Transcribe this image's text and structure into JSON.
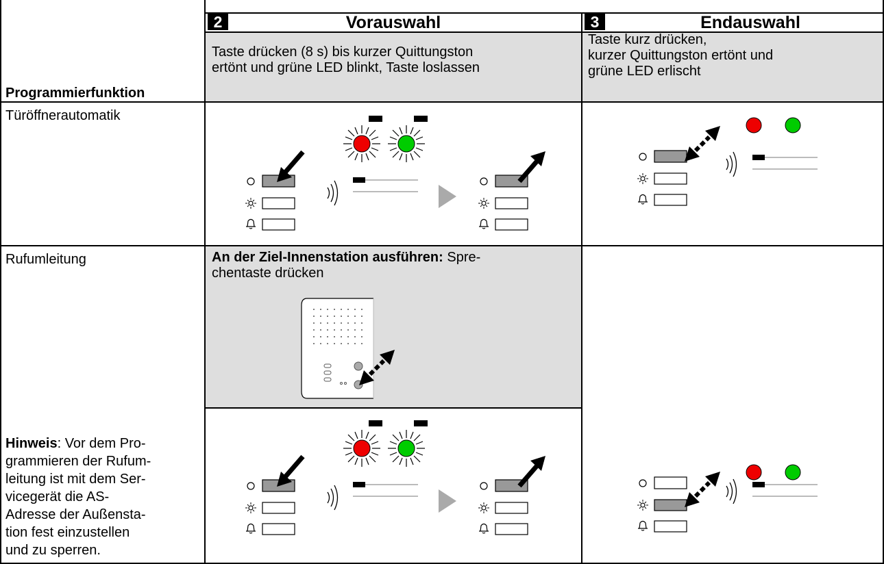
{
  "header": {
    "column1_title": "Programmierfunktion",
    "step2_number": "2",
    "step2_title": "Vorauswahl",
    "step3_number": "3",
    "step3_title": "Endauswahl",
    "step2_instruction": [
      "Taste drücken (8 s) bis kurzer Quittungston",
      "ertönt und grüne LED blinkt, Taste loslassen"
    ],
    "step3_instruction": [
      "Taste kurz drücken,",
      "kurzer Quittungston ertönt und",
      "grüne LED erlischt"
    ]
  },
  "rows": [
    {
      "function": "Türöffnerautomatik"
    },
    {
      "function": "Rufumleitung",
      "step2_instruction_bold": "An der Ziel-Innenstation ausführen:",
      "step2_instruction_lines": [
        " Spre-",
        "chentaste drücken"
      ],
      "note_bold": "Hinweis",
      "note_lines": [
        ": Vor dem Pro-",
        "grammieren der Rufum-",
        "leitung ist mit dem Ser-",
        "vicegerät die AS-",
        "Adresse der Außensta-",
        "tion fest einzustellen",
        "und zu sperren."
      ]
    }
  ]
}
